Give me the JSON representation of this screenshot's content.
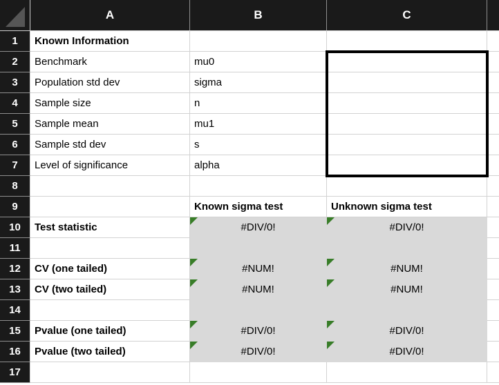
{
  "sheet": {
    "columns": [
      "A",
      "B",
      "C",
      ""
    ],
    "rows": [
      {
        "num": "1",
        "A": "Known Information",
        "B": "",
        "C": "",
        "D": ""
      },
      {
        "num": "2",
        "A": "Benchmark",
        "B": "mu0",
        "C": "",
        "D": ""
      },
      {
        "num": "3",
        "A": "Population std dev",
        "B": "sigma",
        "C": "",
        "D": ""
      },
      {
        "num": "4",
        "A": "Sample size",
        "B": "n",
        "C": "",
        "D": ""
      },
      {
        "num": "5",
        "A": "Sample mean",
        "B": "mu1",
        "C": "",
        "D": ""
      },
      {
        "num": "6",
        "A": "Sample std dev",
        "B": "s",
        "C": "",
        "D": ""
      },
      {
        "num": "7",
        "A": "Level of significance",
        "B": "alpha",
        "C": "",
        "D": ""
      },
      {
        "num": "8",
        "A": "",
        "B": "",
        "C": "",
        "D": ""
      },
      {
        "num": "9",
        "A": "",
        "B": "Known sigma test",
        "C": "Unknown sigma test",
        "D": ""
      },
      {
        "num": "10",
        "A": "Test statistic",
        "B": "#DIV/0!",
        "C": "#DIV/0!",
        "D": ""
      },
      {
        "num": "11",
        "A": "",
        "B": "",
        "C": "",
        "D": ""
      },
      {
        "num": "12",
        "A": "CV (one tailed)",
        "B": "#NUM!",
        "C": "#NUM!",
        "D": ""
      },
      {
        "num": "13",
        "A": "CV (two tailed)",
        "B": "#NUM!",
        "C": "#NUM!",
        "D": ""
      },
      {
        "num": "14",
        "A": "",
        "B": "",
        "C": "",
        "D": ""
      },
      {
        "num": "15",
        "A": "Pvalue (one tailed)",
        "B": "#DIV/0!",
        "C": "#DIV/0!",
        "D": ""
      },
      {
        "num": "16",
        "A": "Pvalue (two tailed)",
        "B": "#DIV/0!",
        "C": "#DIV/0!",
        "D": ""
      },
      {
        "num": "17",
        "A": "",
        "B": "",
        "C": "",
        "D": ""
      }
    ]
  },
  "colors": {
    "chrome_bg": "#1a1a1a",
    "chrome_text": "#ffffff",
    "chrome_separator": "#8f8f8f",
    "gridline": "#d2d2d2",
    "fill_gray": "#d9d9d9",
    "error_indicator_green": "#387d28",
    "text": "#000000",
    "box_border": "#000000",
    "corner_triangle": "#565656",
    "cell_bg": "#ffffff"
  }
}
